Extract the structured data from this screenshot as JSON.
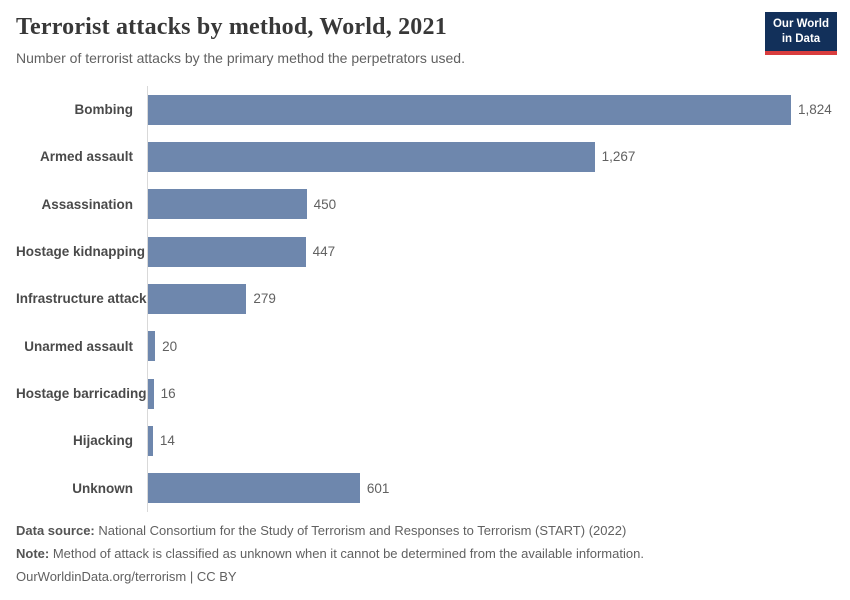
{
  "header": {
    "title": "Terrorist attacks by method, World, 2021",
    "subtitle": "Number of terrorist attacks by the primary method the perpetrators used."
  },
  "logo": {
    "line1": "Our World",
    "line2": "in Data",
    "background_color": "#12305a",
    "accent_color": "#d93d3e"
  },
  "chart_data": {
    "type": "bar",
    "orientation": "horizontal",
    "title": "Terrorist attacks by method, World, 2021",
    "xlabel": "",
    "ylabel": "",
    "grid": false,
    "legend": "none",
    "xlim": [
      0,
      1824
    ],
    "bar_color": "#6e87ad",
    "axis_line_color": "#d9d9d9",
    "categories": [
      "Bombing",
      "Armed assault",
      "Assassination",
      "Hostage kidnapping",
      "Infrastructure attack",
      "Unarmed assault",
      "Hostage barricading",
      "Hijacking",
      "Unknown"
    ],
    "values": [
      1824,
      1267,
      450,
      447,
      279,
      20,
      16,
      14,
      601
    ],
    "value_labels": [
      "1,824",
      "1,267",
      "450",
      "447",
      "279",
      "20",
      "16",
      "14",
      "601"
    ]
  },
  "footer": {
    "source_label": "Data source:",
    "source_text": " National Consortium for the Study of Terrorism and Responses to Terrorism (START) (2022)",
    "note_label": "Note:",
    "note_text": " Method of attack is classified as unknown when it cannot be determined from the available information.",
    "attribution": "OurWorldinData.org/terrorism | CC BY"
  }
}
